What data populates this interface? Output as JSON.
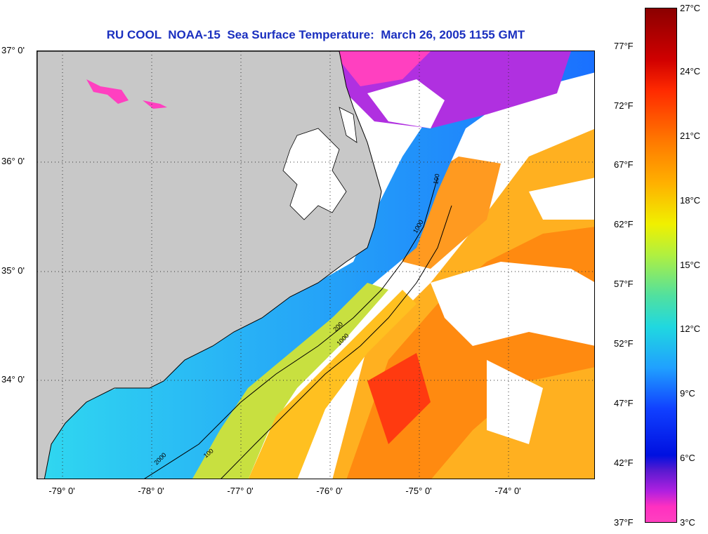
{
  "title": "RU COOL  NOAA-15  Sea Surface Temperature:  March 26, 2005 1155 GMT",
  "latitude_labels": [
    "37° 0'",
    "36° 0'",
    "35° 0'",
    "34° 0'"
  ],
  "longitude_labels": [
    "-79° 0'",
    "-78° 0'",
    "-77° 0'",
    "-76° 0'",
    "-75° 0'",
    "-74° 0'"
  ],
  "colorbar": {
    "celsius": [
      "27°C",
      "24°C",
      "21°C",
      "18°C",
      "15°C",
      "12°C",
      "9°C",
      "6°C",
      "3°C"
    ],
    "fahrenheit": [
      "77°F",
      "72°F",
      "67°F",
      "62°F",
      "57°F",
      "52°F",
      "47°F",
      "42°F",
      "37°F"
    ]
  },
  "isobath_labels": [
    "100",
    "1000",
    "200",
    "100",
    "1000",
    "2000"
  ],
  "colors": {
    "title": "#1a2fbf",
    "land": "#c8c8c8",
    "cloud": "#ffffff"
  }
}
